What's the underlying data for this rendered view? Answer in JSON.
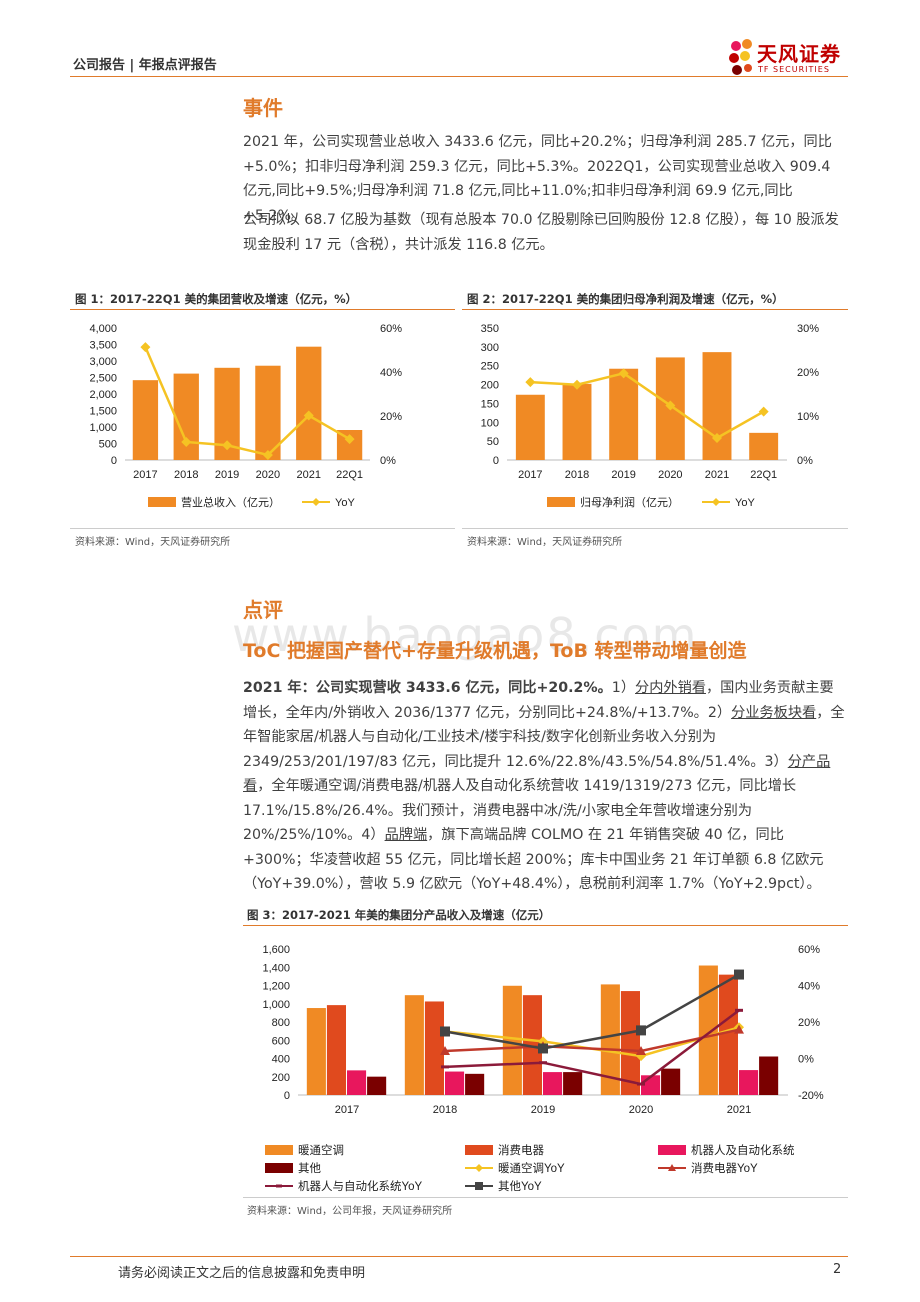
{
  "header": {
    "text": "公司报告 | 年报点评报告",
    "logo_cn": "天风证券",
    "logo_en": "TF SECURITIES"
  },
  "event": {
    "heading": "事件",
    "p1": "2021 年，公司实现营业总收入 3433.6 亿元，同比+20.2%；归母净利润 285.7 亿元，同比+5.0%；扣非归母净利润 259.3 亿元，同比+5.3%。2022Q1，公司实现营业总收入 909.4 亿元,同比+9.5%;归母净利润 71.8 亿元,同比+11.0%;扣非归母净利润 69.9 亿元,同比+5.2%。",
    "p2": "公司拟以 68.7 亿股为基数（现有总股本 70.0 亿股剔除已回购股份 12.8 亿股），每 10 股派发现金股利 17 元（含税），共计派发 116.8 亿元。"
  },
  "fig1": {
    "title": "图 1：2017-22Q1 美的集团营收及增速（亿元，%）",
    "source": "资料来源：Wind，天风证券研究所"
  },
  "fig2": {
    "title": "图 2：2017-22Q1 美的集团归母净利润及增速（亿元，%）",
    "source": "资料来源：Wind，天风证券研究所"
  },
  "review": {
    "heading": "点评",
    "watermark": "www.baogao8.com",
    "subheading": "ToC 把握国产替代+存量升级机遇，ToB 转型带动增量创造",
    "lead": "2021 年：公司实现营收 3433.6 亿元，同比+20.2%。",
    "s1": "1）",
    "u1": "分内外销看",
    "t1": "，国内业务贡献主要增长，全年内/外销收入 2036/1377 亿元，分别同比+24.8%/+13.7%。2）",
    "u2": "分业务板块看",
    "t2": "，全年智能家居/机器人与自动化/工业技术/楼宇科技/数字化创新业务收入分别为 2349/253/201/197/83 亿元，同比提升 12.6%/22.8%/43.5%/54.8%/51.4%。3）",
    "u3": "分产品看",
    "t3": "，全年暖通空调/消费电器/机器人及自动化系统营收 1419/1319/273 亿元，同比增长 17.1%/15.8%/26.4%。我们预计，消费电器中冰/洗/小家电全年营收增速分别为 20%/25%/10%。4）",
    "u4": "品牌端",
    "t4": "，旗下高端品牌 COLMO 在 21 年销售突破 40 亿，同比+300%；华凌营收超 55 亿元，同比增长超 200%；库卡中国业务 21 年订单额 6.8 亿欧元（YoY+39.0%），营收 5.9 亿欧元（YoY+48.4%），息税前利润率 1.7%（YoY+2.9pct）。"
  },
  "fig3": {
    "title": "图 3：2017-2021 年美的集团分产品收入及增速（亿元）",
    "source": "资料来源：Wind，公司年报，天风证券研究所"
  },
  "footer": {
    "text": "请务必阅读正文之后的信息披露和免责申明",
    "page": "2"
  },
  "chart_data": [
    {
      "type": "bar",
      "categories": [
        "2017",
        "2018",
        "2019",
        "2020",
        "2021",
        "22Q1"
      ],
      "series": [
        {
          "name": "营业总收入（亿元）",
          "type": "bar",
          "axis": "left",
          "values": [
            2419,
            2618,
            2794,
            2857,
            3434,
            909
          ],
          "color": "#f08a24"
        },
        {
          "name": "YoY",
          "type": "line",
          "axis": "right",
          "values": [
            51.3,
            8.2,
            6.7,
            2.3,
            20.2,
            9.5
          ],
          "color": "#f5c323"
        }
      ],
      "ylim": [
        0,
        4000
      ],
      "yticks": [
        0,
        500,
        1000,
        1500,
        2000,
        2500,
        3000,
        3500,
        4000
      ],
      "y2lim": [
        0,
        60
      ],
      "y2ticks": [
        "0%",
        "20%",
        "40%",
        "60%"
      ],
      "legend": "bottom"
    },
    {
      "type": "bar",
      "categories": [
        "2017",
        "2018",
        "2019",
        "2020",
        "2021",
        "22Q1"
      ],
      "series": [
        {
          "name": "归母净利润（亿元）",
          "type": "bar",
          "axis": "left",
          "values": [
            173,
            202,
            242,
            272,
            286,
            72
          ],
          "color": "#f08a24"
        },
        {
          "name": "YoY",
          "type": "line",
          "axis": "right",
          "values": [
            17.7,
            17.1,
            19.7,
            12.4,
            5.0,
            11.0
          ],
          "color": "#f5c323"
        }
      ],
      "ylim": [
        0,
        350
      ],
      "yticks": [
        0,
        50,
        100,
        150,
        200,
        250,
        300,
        350
      ],
      "y2lim": [
        0,
        30
      ],
      "y2ticks": [
        "0%",
        "10%",
        "20%",
        "30%"
      ],
      "legend": "bottom"
    },
    {
      "type": "bar",
      "categories": [
        "2017",
        "2018",
        "2019",
        "2020",
        "2021"
      ],
      "series": [
        {
          "name": "暖通空调",
          "type": "bar",
          "axis": "left",
          "values": [
            953,
            1094,
            1197,
            1212,
            1419
          ],
          "color": "#f08a24"
        },
        {
          "name": "消费电器",
          "type": "bar",
          "axis": "left",
          "values": [
            985,
            1025,
            1094,
            1139,
            1319
          ],
          "color": "#e04a1e"
        },
        {
          "name": "机器人及自动化系统",
          "type": "bar",
          "axis": "left",
          "values": [
            270,
            257,
            251,
            216,
            273
          ],
          "color": "#e8175d"
        },
        {
          "name": "其他",
          "type": "bar",
          "axis": "left",
          "values": [
            201,
            232,
            251,
            289,
            422
          ],
          "color": "#7a0000"
        },
        {
          "name": "暖通空调YoY",
          "type": "line",
          "axis": "right",
          "values": [
            null,
            14.8,
            9.4,
            1.3,
            17.1
          ],
          "color": "#f5c323"
        },
        {
          "name": "消费电器YoY",
          "type": "line",
          "axis": "right",
          "values": [
            null,
            4.1,
            6.7,
            4.1,
            15.8
          ],
          "color": "#c0392b"
        },
        {
          "name": "机器人与自动化系统YoY",
          "type": "line",
          "axis": "right",
          "values": [
            null,
            -4.6,
            -2.3,
            -14.0,
            26.4
          ],
          "color": "#8b1a3a"
        },
        {
          "name": "其他YoY",
          "type": "line",
          "axis": "right",
          "values": [
            null,
            14.8,
            5.5,
            15.4,
            46.0
          ],
          "color": "#444444"
        }
      ],
      "ylim": [
        0,
        1600
      ],
      "yticks": [
        0,
        200,
        400,
        600,
        800,
        1000,
        1200,
        1400,
        1600
      ],
      "y2lim": [
        -20,
        60
      ],
      "y2ticks": [
        "-20%",
        "0%",
        "20%",
        "40%",
        "60%"
      ],
      "legend": "bottom"
    }
  ]
}
